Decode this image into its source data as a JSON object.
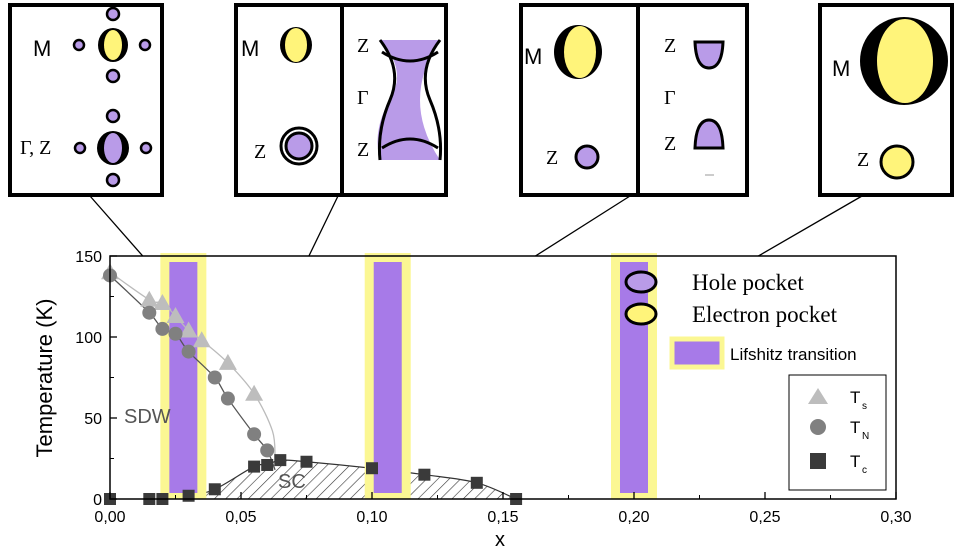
{
  "colors": {
    "hole": "#b99be8",
    "electron": "#fff47a",
    "lifshitz_fill": "#a77ae8",
    "lifshitz_glow": "#fbf793",
    "ts": "#bdbdbd",
    "tn": "#808080",
    "tc": "#3a3a3a"
  },
  "insets": [
    {
      "id": "inset1",
      "labels": {
        "M": "M",
        "GZ": "Γ, Z"
      }
    },
    {
      "id": "inset2",
      "labels": {
        "M": "M",
        "Z": "Z",
        "Z_top": "Z",
        "Gamma": "Γ",
        "Z_bot": "Z"
      }
    },
    {
      "id": "inset3",
      "labels": {
        "M": "M",
        "Z": "Z",
        "Z_top": "Z",
        "Gamma": "Γ",
        "Z_bot": "Z"
      }
    },
    {
      "id": "inset4",
      "labels": {
        "M": "M",
        "Z": "Z"
      }
    }
  ],
  "legend_top": {
    "hole": "Hole pocket",
    "electron": "Electron pocket",
    "lifshitz": "Lifshitz transition"
  },
  "legend_bottom": {
    "ts": {
      "main": "T",
      "sub": "s"
    },
    "tn": {
      "main": "T",
      "sub": "N"
    },
    "tc": {
      "main": "T",
      "sub": "c"
    }
  },
  "chart_data": {
    "type": "scatter",
    "xlabel": "x",
    "ylabel": "Temperature (K)",
    "xlim": [
      0.0,
      0.3
    ],
    "ylim": [
      0,
      150
    ],
    "xticks": [
      "0,00",
      "0,05",
      "0,10",
      "0,15",
      "0,20",
      "0,25",
      "0,30"
    ],
    "yticks": [
      "0",
      "50",
      "100",
      "150"
    ],
    "region_labels": {
      "sdw": "SDW",
      "sc": "SC"
    },
    "series": [
      {
        "name": "Ts",
        "marker": "triangle",
        "x": [
          0.0,
          0.015,
          0.02,
          0.025,
          0.03,
          0.035,
          0.045,
          0.055
        ],
        "y": [
          140,
          123,
          121,
          113,
          104,
          98,
          84,
          65
        ]
      },
      {
        "name": "TN",
        "marker": "circle",
        "x": [
          0.0,
          0.015,
          0.02,
          0.025,
          0.03,
          0.04,
          0.045,
          0.055,
          0.06
        ],
        "y": [
          138,
          115,
          105,
          102,
          91,
          75,
          62,
          40,
          30
        ]
      },
      {
        "name": "Tc",
        "marker": "square",
        "x": [
          0.0,
          0.015,
          0.02,
          0.03,
          0.04,
          0.055,
          0.06,
          0.065,
          0.075,
          0.1,
          0.12,
          0.14,
          0.155
        ],
        "y": [
          0,
          0,
          0,
          2,
          6,
          20,
          21,
          24,
          23,
          19,
          15,
          10,
          0
        ]
      }
    ],
    "lifshitz_transitions": [
      0.028,
      0.106,
      0.2
    ]
  }
}
